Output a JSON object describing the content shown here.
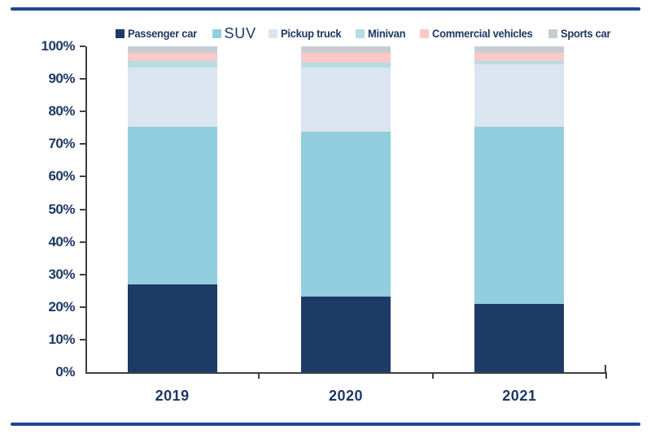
{
  "page": {
    "background": "#ffffff",
    "accent_rule_color": "#1e4591",
    "axis_color": "#3f3f3f",
    "label_color": "#1f3864"
  },
  "chart_data": {
    "type": "bar",
    "stacked": true,
    "unit": "%",
    "title": "",
    "xlabel": "",
    "ylabel": "",
    "grid": false,
    "legend_position": "top",
    "categories": [
      "2019",
      "2020",
      "2021"
    ],
    "series": [
      {
        "name": "Passenger car",
        "color": "#1d3b66",
        "values": [
          27.0,
          23.3,
          21.0
        ]
      },
      {
        "name": "SUV",
        "color": "#92cedd",
        "values": [
          48.3,
          50.4,
          54.3
        ]
      },
      {
        "name": "Pickup truck",
        "color": "#dbe5ef",
        "values": [
          18.2,
          19.8,
          19.2
        ]
      },
      {
        "name": "Minivan",
        "color": "#b7dce2",
        "values": [
          2.0,
          1.5,
          1.0
        ]
      },
      {
        "name": "Commercial vehicles",
        "color": "#f9c9ca",
        "values": [
          2.5,
          3.0,
          2.5
        ]
      },
      {
        "name": "Sports car",
        "color": "#c9cdd1",
        "values": [
          2.0,
          2.0,
          2.0
        ]
      }
    ],
    "y_axis": {
      "min": 0,
      "max": 100,
      "tick_step": 10,
      "tick_labels": [
        "100%",
        "90%",
        "80%",
        "70%",
        "60%",
        "50%",
        "40%",
        "30%",
        "20%",
        "10%",
        "0%"
      ]
    }
  }
}
